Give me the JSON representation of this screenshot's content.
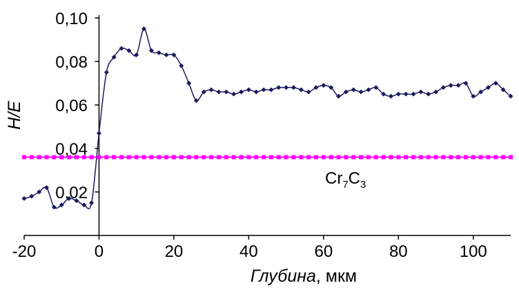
{
  "chart_data": {
    "type": "line",
    "xlabel": {
      "italic": "Глубина",
      "rest": ", мкм"
    },
    "ylabel": "H/E",
    "xlim": [
      -20,
      110
    ],
    "ylim": [
      0,
      0.1
    ],
    "x_ticks": [
      -20,
      0,
      20,
      40,
      60,
      80,
      100
    ],
    "x_tick_labels": [
      "-20",
      "0",
      "20",
      "40",
      "60",
      "80",
      "100"
    ],
    "y_ticks": [
      0.02,
      0.04,
      0.06,
      0.08,
      0.1
    ],
    "y_tick_labels": [
      "0,02",
      "0,04",
      "0,06",
      "0,08",
      "0,10"
    ],
    "grid": false,
    "series": [
      {
        "color": "#1a1a5e",
        "marker": "diamond",
        "smooth": true,
        "x": [
          -20,
          -18,
          -16,
          -14,
          -12,
          -10,
          -8,
          -6,
          -4,
          -2,
          0,
          2,
          4,
          6,
          8,
          10,
          12,
          14,
          16,
          18,
          20,
          22,
          24,
          26,
          28,
          30,
          32,
          34,
          36,
          38,
          40,
          42,
          44,
          46,
          48,
          50,
          52,
          54,
          56,
          58,
          60,
          62,
          64,
          66,
          68,
          70,
          72,
          74,
          76,
          78,
          80,
          82,
          84,
          86,
          88,
          90,
          92,
          94,
          96,
          98,
          100,
          102,
          104,
          106,
          108,
          110
        ],
        "y": [
          0.017,
          0.018,
          0.02,
          0.022,
          0.013,
          0.014,
          0.017,
          0.016,
          0.014,
          0.015,
          0.047,
          0.075,
          0.082,
          0.086,
          0.085,
          0.083,
          0.095,
          0.085,
          0.084,
          0.083,
          0.083,
          0.078,
          0.07,
          0.062,
          0.066,
          0.067,
          0.066,
          0.066,
          0.065,
          0.066,
          0.067,
          0.066,
          0.067,
          0.067,
          0.068,
          0.068,
          0.068,
          0.067,
          0.066,
          0.068,
          0.069,
          0.068,
          0.064,
          0.066,
          0.067,
          0.066,
          0.067,
          0.068,
          0.065,
          0.064,
          0.065,
          0.065,
          0.065,
          0.066,
          0.065,
          0.066,
          0.068,
          0.069,
          0.069,
          0.07,
          0.064,
          0.066,
          0.068,
          0.07,
          0.067,
          0.064
        ]
      },
      {
        "color": "#ff00ff",
        "marker": "square",
        "smooth": false,
        "x": [
          -20,
          -18,
          -16,
          -14,
          -12,
          -10,
          -8,
          -6,
          -4,
          -2,
          0,
          2,
          4,
          6,
          8,
          10,
          12,
          14,
          16,
          18,
          20,
          22,
          24,
          26,
          28,
          30,
          32,
          34,
          36,
          38,
          40,
          42,
          44,
          46,
          48,
          50,
          52,
          54,
          56,
          58,
          60,
          62,
          64,
          66,
          68,
          70,
          72,
          74,
          76,
          78,
          80,
          82,
          84,
          86,
          88,
          90,
          92,
          94,
          96,
          98,
          100,
          102,
          104,
          106,
          108,
          110
        ],
        "y": [
          0.036,
          0.036,
          0.036,
          0.036,
          0.036,
          0.036,
          0.036,
          0.036,
          0.036,
          0.036,
          0.036,
          0.036,
          0.036,
          0.036,
          0.036,
          0.036,
          0.036,
          0.036,
          0.036,
          0.036,
          0.036,
          0.036,
          0.036,
          0.036,
          0.036,
          0.036,
          0.036,
          0.036,
          0.036,
          0.036,
          0.036,
          0.036,
          0.036,
          0.036,
          0.036,
          0.036,
          0.036,
          0.036,
          0.036,
          0.036,
          0.036,
          0.036,
          0.036,
          0.036,
          0.036,
          0.036,
          0.036,
          0.036,
          0.036,
          0.036,
          0.036,
          0.036,
          0.036,
          0.036,
          0.036,
          0.036,
          0.036,
          0.036,
          0.036,
          0.036,
          0.036,
          0.036,
          0.036,
          0.036,
          0.036,
          0.036
        ]
      }
    ],
    "annotation": {
      "base": "Cr",
      "sub1": "7",
      "mid": "C",
      "sub2": "3",
      "x": 66,
      "y": 0.027
    }
  }
}
